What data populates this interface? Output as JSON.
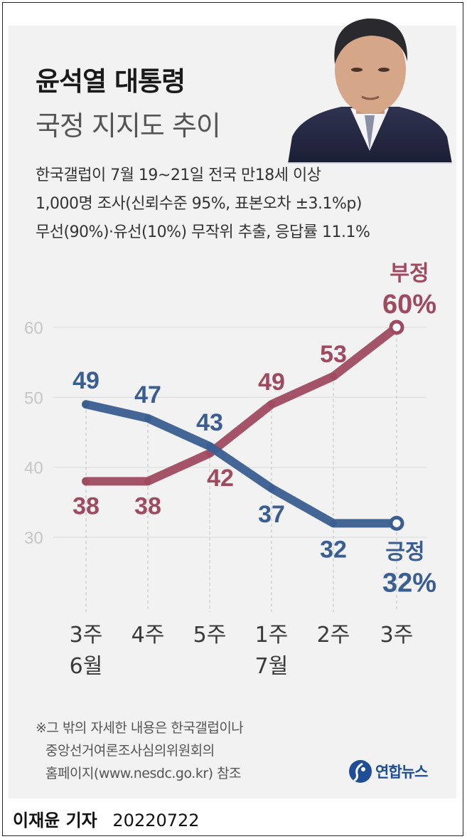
{
  "header": {
    "title": "윤석열 대통령",
    "subtitle": "국정 지지도 추이"
  },
  "survey_note": [
    "한국갤럽이 7월 19~21일 전국 만18세 이상",
    "1,000명 조사(신뢰수준 95%, 표본오차 ±3.1%p)",
    "무선(90%)·유선(10%) 무작위 추출, 응답률 11.1%"
  ],
  "chart_data": {
    "type": "line",
    "categories": [
      "3주\n6월",
      "4주",
      "5주",
      "1주\n7월",
      "2주",
      "3주"
    ],
    "ylim": [
      25,
      67
    ],
    "yticks": [
      30,
      40,
      50,
      60
    ],
    "grid": true,
    "series": [
      {
        "name": "부정",
        "values": [
          38,
          38,
          42,
          49,
          53,
          60
        ],
        "color": "#a04a60",
        "end_label": "60%"
      },
      {
        "name": "긍정",
        "values": [
          49,
          47,
          43,
          37,
          32,
          32
        ],
        "color": "#3a5e91",
        "end_label": "32%"
      }
    ]
  },
  "footnote": [
    "※그 밖의 자세한 내용은 한국갤럽이나",
    "중앙선거여론조사심의위원회의",
    "홈페이지(www.nesdc.go.kr) 참조"
  ],
  "logo": {
    "text": "연합뉴스"
  },
  "byline": {
    "name": "이재윤 기자",
    "date": "20220722"
  }
}
